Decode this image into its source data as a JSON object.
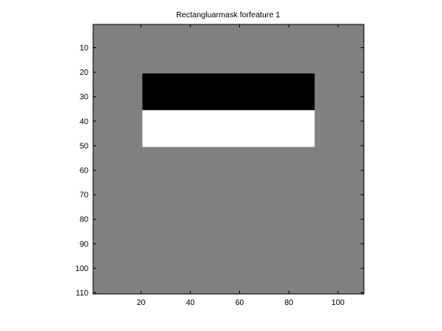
{
  "chart_data": {
    "type": "heatmap",
    "title": "Rectangluarmask forfeature 1",
    "xlabel": "",
    "ylabel": "",
    "xlim": [
      0.5,
      110.5
    ],
    "ylim": [
      0.5,
      110.5
    ],
    "y_reversed": true,
    "grid": false,
    "colormap": "gray",
    "background_value": 0,
    "color_scale": {
      "min": -1,
      "max": 1
    },
    "x_ticks": [
      20,
      40,
      60,
      80,
      100
    ],
    "y_ticks": [
      10,
      20,
      30,
      40,
      50,
      60,
      70,
      80,
      90,
      100,
      110
    ],
    "regions": [
      {
        "name": "black",
        "x_range": [
          21,
          90
        ],
        "y_range": [
          21,
          35
        ],
        "value": -1
      },
      {
        "name": "white",
        "x_range": [
          21,
          90
        ],
        "y_range": [
          36,
          50
        ],
        "value": 1
      }
    ]
  }
}
